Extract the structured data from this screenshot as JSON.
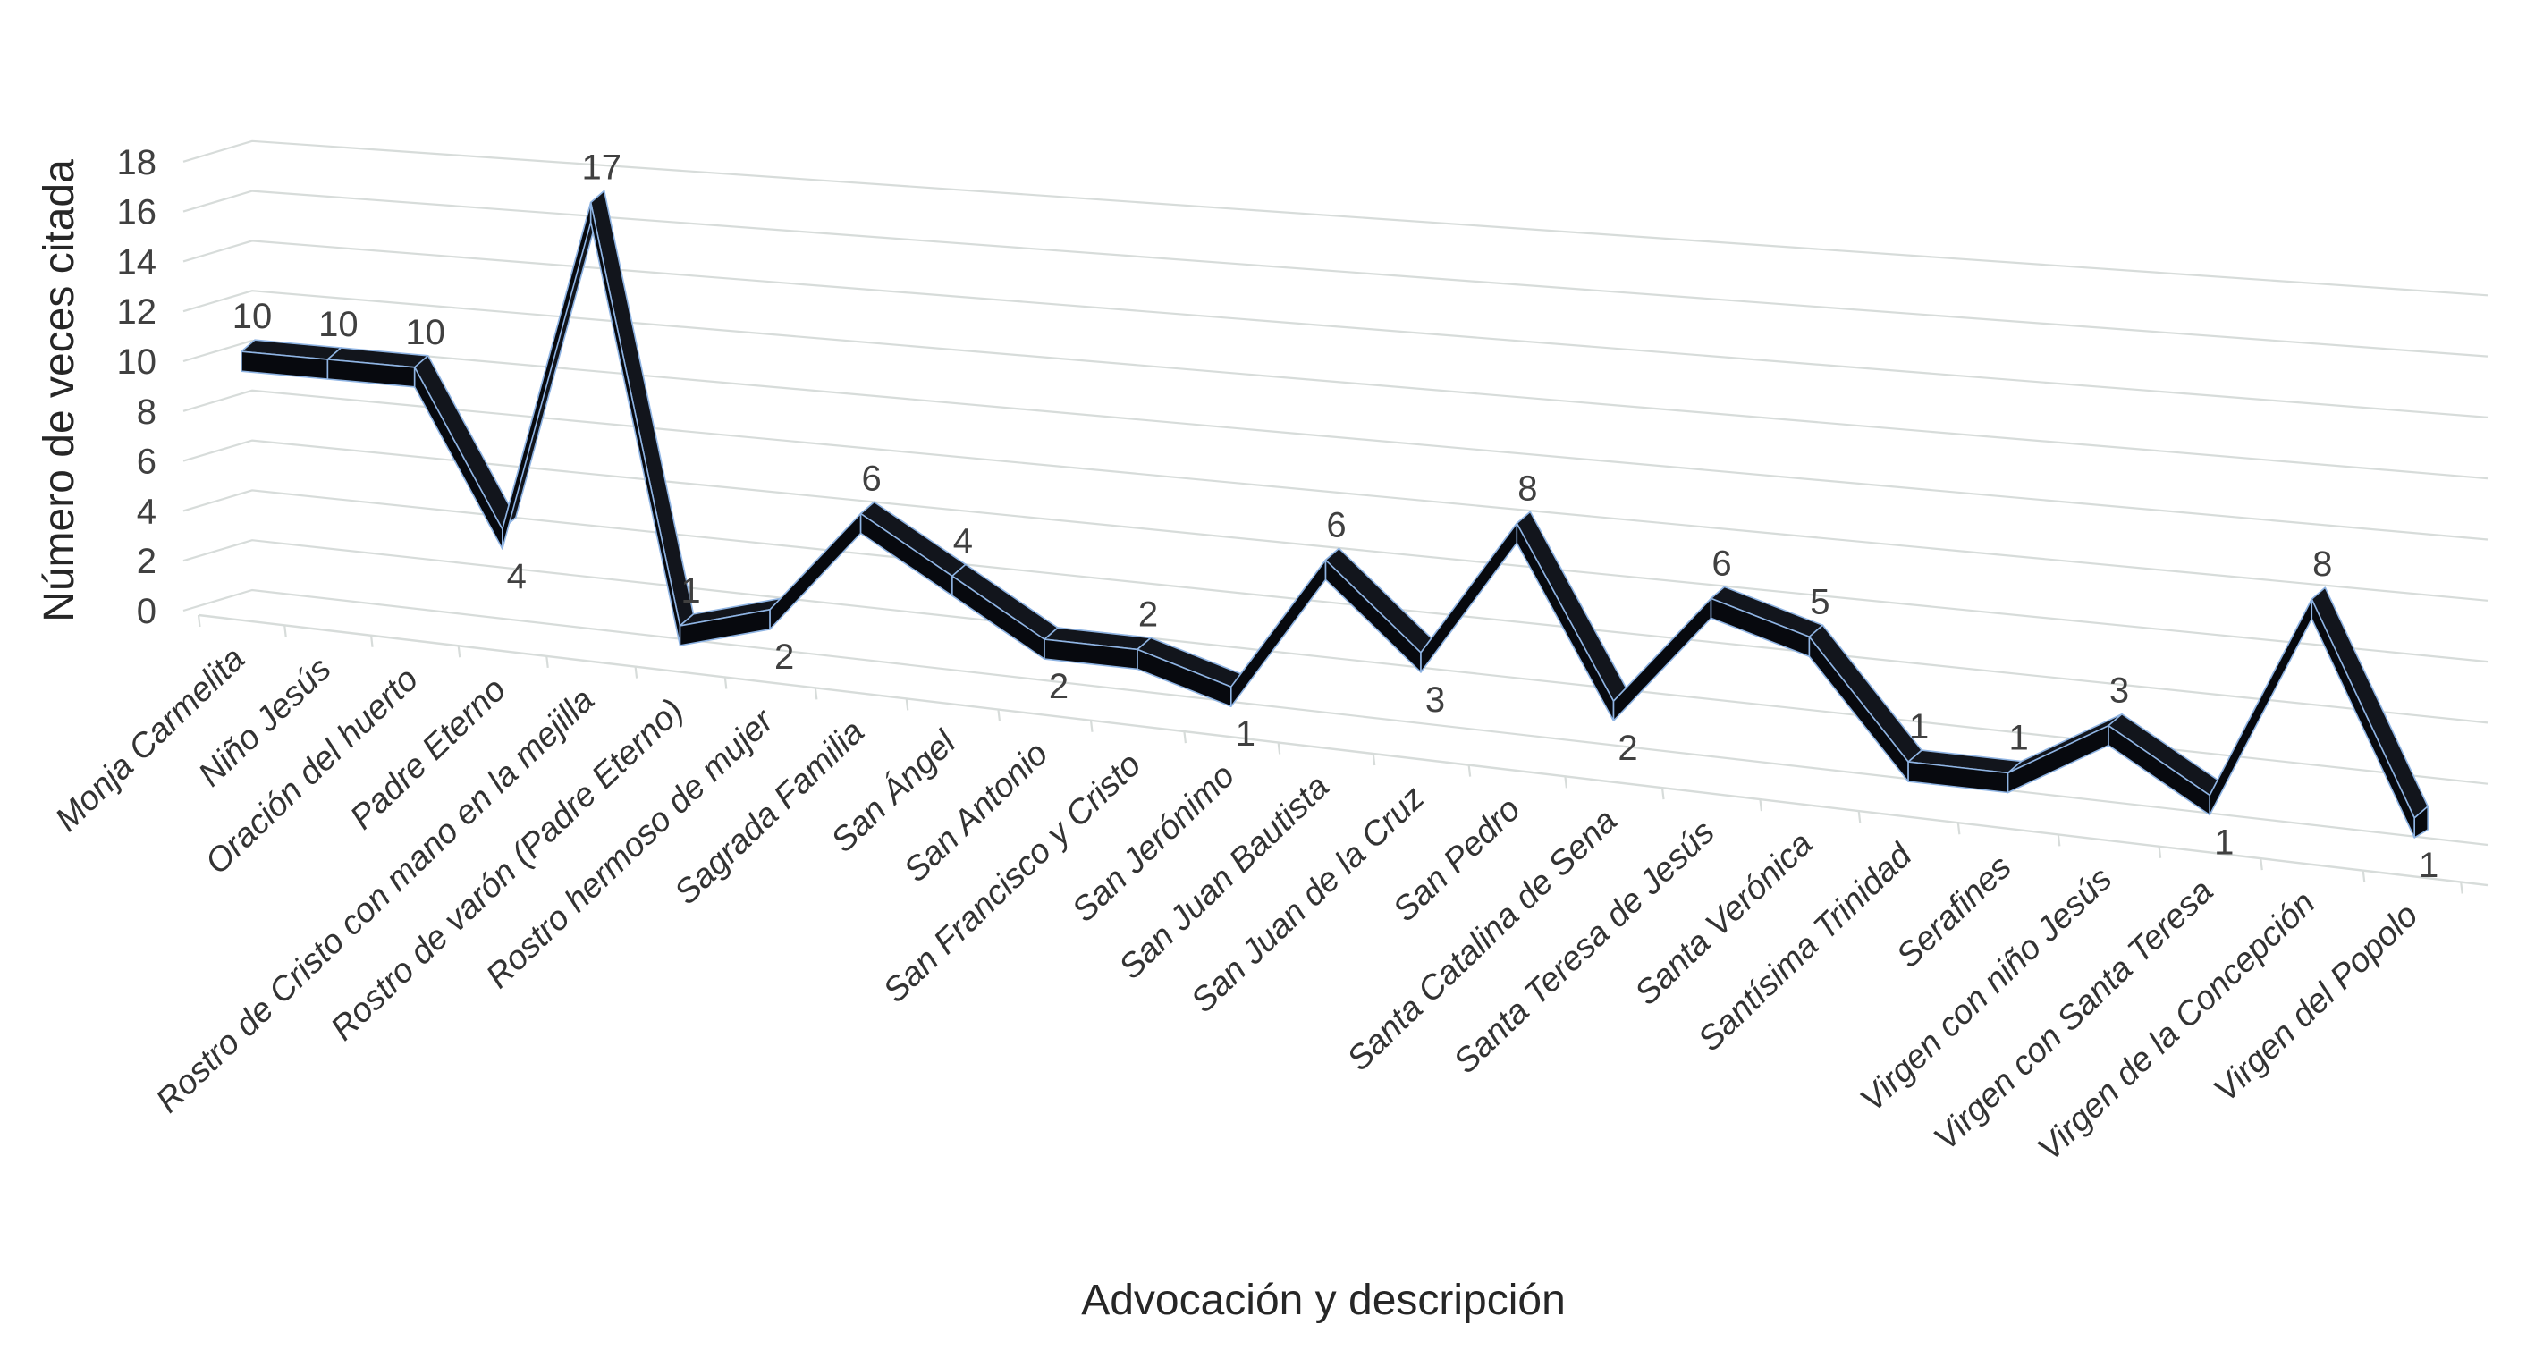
{
  "chart_data": {
    "type": "line",
    "style": "3d-ribbon",
    "title": "",
    "xlabel": "Advocación y descripción",
    "ylabel": "Número de veces citada",
    "categories": [
      "Monja Carmelita",
      "Niño Jesús",
      "Oración del huerto",
      "Padre Eterno",
      "Rostro de Cristo con mano en la mejilla",
      "Rostro de varón (Padre Eterno)",
      "Rostro hermoso de mujer",
      "Sagrada Familia",
      "San Ángel",
      "San Antonio",
      "San Francisco y Cristo",
      "San Jerónimo",
      "San Juan Bautista",
      "San Juan de la Cruz",
      "San Pedro",
      "Santa Catalina de Sena",
      "Santa Teresa de Jesús",
      "Santa Verónica",
      "Santísima Trinidad",
      "Serafines",
      "Virgen con niño Jesús",
      "Virgen con Santa Teresa",
      "Virgen de la Concepción",
      "Virgen del Popolo"
    ],
    "values": [
      10,
      10,
      10,
      4,
      17,
      1,
      2,
      6,
      4,
      2,
      2,
      1,
      6,
      3,
      8,
      2,
      6,
      5,
      1,
      1,
      3,
      1,
      8,
      1
    ],
    "data_label_sides": [
      "above",
      "above",
      "above",
      "below",
      "above",
      "above",
      "below",
      "above",
      "above",
      "below",
      "above",
      "below",
      "above",
      "below",
      "above",
      "below",
      "above",
      "above",
      "above",
      "above",
      "above",
      "below",
      "above",
      "below"
    ],
    "yticks": [
      0,
      2,
      4,
      6,
      8,
      10,
      12,
      14,
      16,
      18
    ],
    "ylim": [
      0,
      18
    ],
    "grid": true,
    "legend": "none",
    "colors": {
      "ribbon_front": "#07090e",
      "ribbon_top": "#12151c",
      "ribbon_edge": "#8fb4e3",
      "gridline": "#d7dcda",
      "tick_text": "#404040",
      "data_label_text": "#404040",
      "axis_title_text": "#262626",
      "background": "#ffffff"
    }
  }
}
